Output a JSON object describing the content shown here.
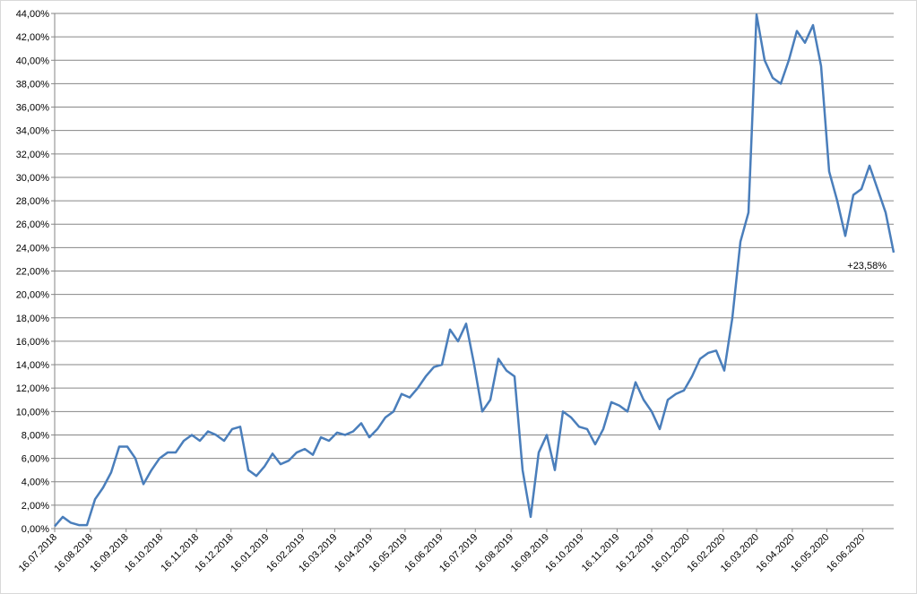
{
  "chart_data": {
    "type": "line",
    "x": [
      "16.07.2018",
      "23.07.2018",
      "30.07.2018",
      "06.08.2018",
      "13.08.2018",
      "20.08.2018",
      "27.08.2018",
      "03.09.2018",
      "10.09.2018",
      "17.09.2018",
      "24.09.2018",
      "01.10.2018",
      "08.10.2018",
      "15.10.2018",
      "22.10.2018",
      "29.10.2018",
      "05.11.2018",
      "12.11.2018",
      "19.11.2018",
      "26.11.2018",
      "03.12.2018",
      "10.12.2018",
      "17.12.2018",
      "24.12.2018",
      "31.12.2018",
      "07.01.2019",
      "14.01.2019",
      "21.01.2019",
      "28.01.2019",
      "04.02.2019",
      "11.02.2019",
      "18.02.2019",
      "25.02.2019",
      "04.03.2019",
      "11.03.2019",
      "18.03.2019",
      "25.03.2019",
      "01.04.2019",
      "08.04.2019",
      "15.04.2019",
      "22.04.2019",
      "29.04.2019",
      "06.05.2019",
      "13.05.2019",
      "20.05.2019",
      "27.05.2019",
      "03.06.2019",
      "10.06.2019",
      "17.06.2019",
      "24.06.2019",
      "01.07.2019",
      "08.07.2019",
      "15.07.2019",
      "22.07.2019",
      "29.07.2019",
      "05.08.2019",
      "12.08.2019",
      "19.08.2019",
      "26.08.2019",
      "02.09.2019",
      "09.09.2019",
      "16.09.2019",
      "23.09.2019",
      "30.09.2019",
      "07.10.2019",
      "14.10.2019",
      "21.10.2019",
      "28.10.2019",
      "04.11.2019",
      "11.11.2019",
      "18.11.2019",
      "25.11.2019",
      "02.12.2019",
      "09.12.2019",
      "16.12.2019",
      "23.12.2019",
      "30.12.2019",
      "06.01.2020",
      "13.01.2020",
      "20.01.2020",
      "27.01.2020",
      "03.02.2020",
      "10.02.2020",
      "17.02.2020",
      "24.02.2020",
      "02.03.2020",
      "09.03.2020",
      "16.03.2020",
      "23.03.2020",
      "30.03.2020",
      "06.04.2020",
      "13.04.2020",
      "20.04.2020",
      "27.04.2020",
      "04.05.2020",
      "11.05.2020",
      "18.05.2020",
      "25.05.2020",
      "01.06.2020",
      "08.06.2020",
      "15.06.2020",
      "22.06.2020",
      "29.06.2020",
      "06.07.2020",
      "13.07.2020"
    ],
    "series": [
      {
        "color": "#4a7ebb",
        "values": [
          0.2,
          1.0,
          0.5,
          0.3,
          0.3,
          2.5,
          3.5,
          4.8,
          7.0,
          7.0,
          6.0,
          3.8,
          5.0,
          6.0,
          6.5,
          6.5,
          7.5,
          8.0,
          7.5,
          8.3,
          8.0,
          7.5,
          8.5,
          8.7,
          5.0,
          4.5,
          5.3,
          6.4,
          5.5,
          5.8,
          6.5,
          6.8,
          6.3,
          7.8,
          7.5,
          8.2,
          8.0,
          8.3,
          9.0,
          7.8,
          8.5,
          9.5,
          10.0,
          11.5,
          11.2,
          12.0,
          13.0,
          13.8,
          14.0,
          17.0,
          16.0,
          17.5,
          14.0,
          10.0,
          11.0,
          14.5,
          13.5,
          13.0,
          5.0,
          1.0,
          6.5,
          8.0,
          5.0,
          10.0,
          9.5,
          8.7,
          8.5,
          7.2,
          8.5,
          10.8,
          10.5,
          10.0,
          12.5,
          11.0,
          10.0,
          8.5,
          11.0,
          11.5,
          11.8,
          13.0,
          14.5,
          15.0,
          15.2,
          13.5,
          18.0,
          24.5,
          27.0,
          43.9,
          40.0,
          38.5,
          38.0,
          40.0,
          42.5,
          41.5,
          43.0,
          39.5,
          30.5,
          28.0,
          25.0,
          28.5,
          29.0,
          31.0,
          29.0,
          27.0,
          23.58
        ],
        "value_labels": [
          null,
          null,
          null,
          null,
          null,
          null,
          null,
          null,
          null,
          null,
          null,
          null,
          null,
          null,
          null,
          null,
          null,
          null,
          null,
          null,
          null,
          null,
          null,
          null,
          null,
          null,
          null,
          null,
          null,
          null,
          null,
          null,
          null,
          null,
          null,
          null,
          null,
          null,
          null,
          null,
          null,
          null,
          null,
          null,
          null,
          null,
          null,
          null,
          null,
          null,
          null,
          null,
          null,
          null,
          null,
          null,
          null,
          null,
          null,
          null,
          null,
          null,
          null,
          null,
          null,
          null,
          null,
          null,
          null,
          null,
          null,
          null,
          null,
          null,
          null,
          null,
          null,
          null,
          null,
          null,
          null,
          null,
          null,
          null,
          null,
          null,
          null,
          null,
          null,
          null,
          null,
          null,
          null,
          null,
          null,
          null,
          null,
          null,
          null,
          null,
          null,
          null,
          null,
          null,
          "+23,58%"
        ]
      }
    ],
    "xlim": [
      "16.07.2018",
      "13.07.2020"
    ],
    "xticks": [
      "16.07.2018",
      "16.08.2018",
      "16.09.2018",
      "16.10.2018",
      "16.11.2018",
      "16.12.2018",
      "16.01.2019",
      "16.02.2019",
      "16.03.2019",
      "16.04.2019",
      "16.05.2019",
      "16.06.2019",
      "16.07.2019",
      "16.08.2019",
      "16.09.2019",
      "16.10.2019",
      "16.11.2019",
      "16.12.2019",
      "16.01.2020",
      "16.02.2020",
      "16.03.2020",
      "16.04.2020",
      "16.05.2020",
      "16.06.2020"
    ],
    "ylim": [
      0,
      44
    ],
    "yticks": [
      {
        "value": 0,
        "label": "0,00%"
      },
      {
        "value": 2,
        "label": "2,00%"
      },
      {
        "value": 4,
        "label": "4,00%"
      },
      {
        "value": 6,
        "label": "6,00%"
      },
      {
        "value": 8,
        "label": "8,00%"
      },
      {
        "value": 10,
        "label": "10,00%"
      },
      {
        "value": 12,
        "label": "12,00%"
      },
      {
        "value": 14,
        "label": "14,00%"
      },
      {
        "value": 16,
        "label": "16,00%"
      },
      {
        "value": 18,
        "label": "18,00%"
      },
      {
        "value": 20,
        "label": "20,00%"
      },
      {
        "value": 22,
        "label": "22,00%"
      },
      {
        "value": 24,
        "label": "24,00%"
      },
      {
        "value": 26,
        "label": "26,00%"
      },
      {
        "value": 28,
        "label": "28,00%"
      },
      {
        "value": 30,
        "label": "30,00%"
      },
      {
        "value": 32,
        "label": "32,00%"
      },
      {
        "value": 34,
        "label": "34,00%"
      },
      {
        "value": 36,
        "label": "36,00%"
      },
      {
        "value": 38,
        "label": "38,00%"
      },
      {
        "value": 40,
        "label": "40,00%"
      },
      {
        "value": 42,
        "label": "42,00%"
      },
      {
        "value": 44,
        "label": "44,00%"
      }
    ],
    "grid": true
  }
}
